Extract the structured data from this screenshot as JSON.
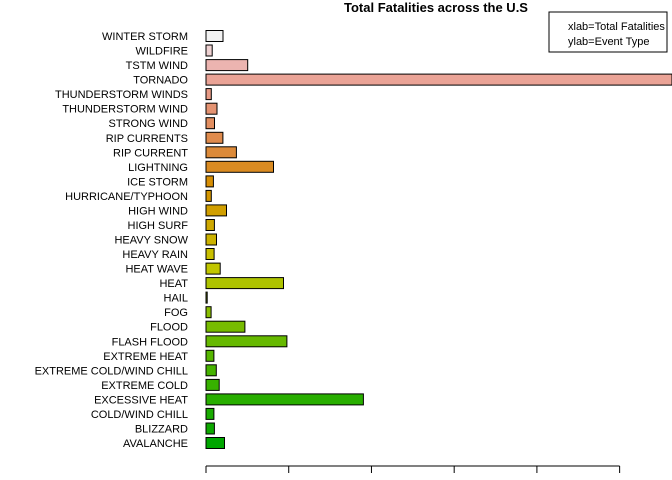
{
  "chart_data": {
    "type": "bar",
    "orientation": "horizontal",
    "title": "Total Fatalities across the U.S",
    "xlabel": "",
    "ylabel": "",
    "xlim": [
      0,
      5633
    ],
    "x_tick_values": [
      0,
      1000,
      2000,
      3000,
      4000,
      5000
    ],
    "x_tick_labels_shown": false,
    "grid": false,
    "legend_position": "top-right",
    "legend_lines": [
      "xlab=Total Fatalities",
      "ylab=Event Type"
    ],
    "categories": [
      "AVALANCHE",
      "BLIZZARD",
      "COLD/WIND CHILL",
      "EXCESSIVE HEAT",
      "EXTREME COLD",
      "EXTREME COLD/WIND CHILL",
      "EXTREME HEAT",
      "FLASH FLOOD",
      "FLOOD",
      "FOG",
      "HAIL",
      "HEAT",
      "HEAT WAVE",
      "HEAVY RAIN",
      "HEAVY SNOW",
      "HIGH SURF",
      "HIGH WIND",
      "HURRICANE/TYPHOON",
      "ICE STORM",
      "LIGHTNING",
      "RIP CURRENT",
      "RIP CURRENTS",
      "STRONG WIND",
      "THUNDERSTORM WIND",
      "THUNDERSTORM WINDS",
      "TORNADO",
      "TSTM WIND",
      "WILDFIRE",
      "WINTER STORM"
    ],
    "values": [
      224,
      101,
      95,
      1903,
      160,
      125,
      96,
      978,
      470,
      62,
      15,
      937,
      172,
      98,
      127,
      101,
      248,
      64,
      89,
      816,
      368,
      204,
      103,
      133,
      64,
      5633,
      504,
      75,
      206
    ],
    "colors": [
      "#00A600",
      "#0DA800",
      "#19AB00",
      "#28AE00",
      "#37B100",
      "#46B300",
      "#56B600",
      "#66B900",
      "#77BB00",
      "#89BE00",
      "#9BC100",
      "#AEC300",
      "#C1C600",
      "#C9BF00",
      "#CCB200",
      "#CEA800",
      "#D19F00",
      "#D49600",
      "#D78E03",
      "#DA8B22",
      "#DC8A39",
      "#DF8B4D",
      "#E28E60",
      "#E49372",
      "#E79A85",
      "#EAA396",
      "#ECB4B0",
      "#EFD2D2",
      "#F2F2F2"
    ]
  }
}
